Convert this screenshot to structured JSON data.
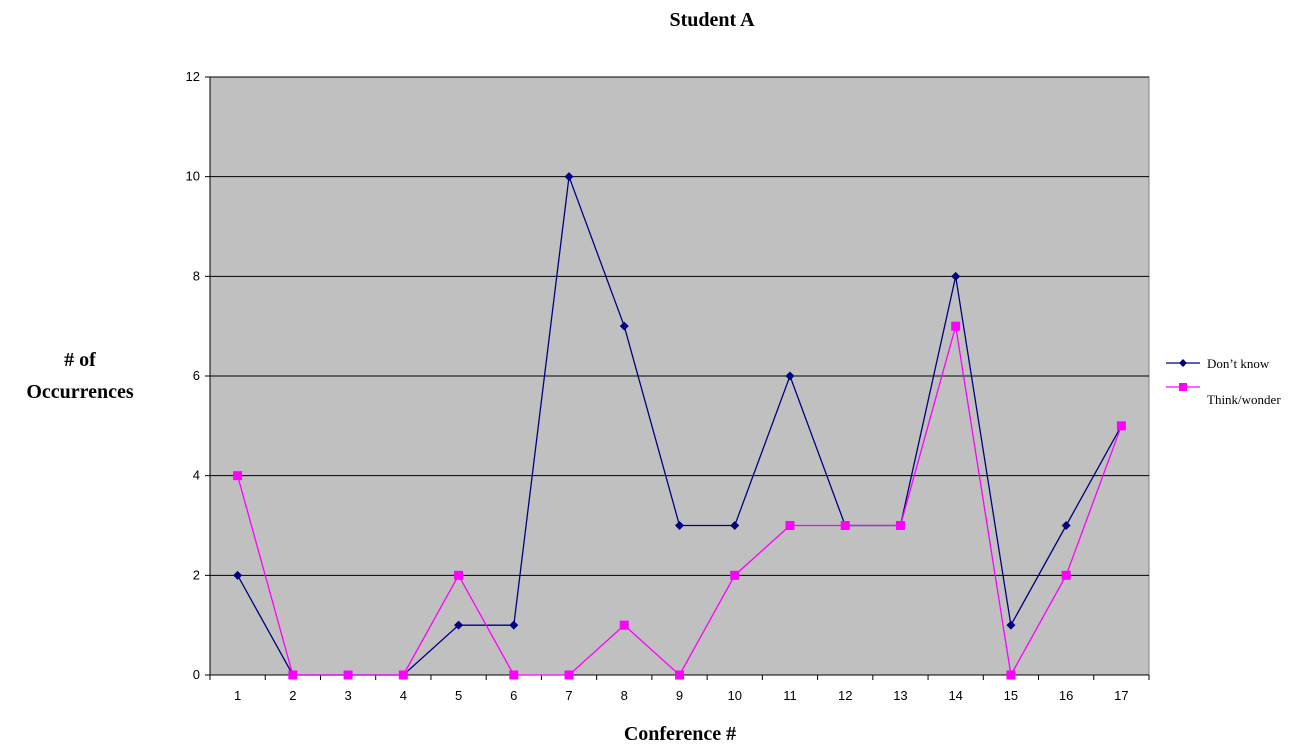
{
  "chart_data": {
    "type": "line",
    "title": "Student A",
    "xlabel": "Conference #",
    "ylabel_lines": [
      "# of",
      "Occurrences"
    ],
    "x": [
      "1",
      "2",
      "3",
      "4",
      "5",
      "6",
      "7",
      "8",
      "9",
      "10",
      "11",
      "12",
      "13",
      "14",
      "15",
      "16",
      "17"
    ],
    "ylim": [
      0,
      12
    ],
    "yticks": [
      "0",
      "2",
      "4",
      "6",
      "8",
      "10",
      "12"
    ],
    "grid": true,
    "legend_position": "right",
    "series": [
      {
        "name": "Don’t know",
        "color": "#000080",
        "marker": "diamond",
        "values": [
          2,
          0,
          0,
          0,
          1,
          1,
          10,
          7,
          3,
          3,
          6,
          3,
          3,
          8,
          1,
          3,
          5
        ]
      },
      {
        "name": "Think/wonder",
        "color": "#ff00ff",
        "marker": "square",
        "values": [
          4,
          0,
          0,
          0,
          2,
          0,
          0,
          1,
          0,
          2,
          3,
          3,
          3,
          7,
          0,
          2,
          5
        ]
      }
    ],
    "plot_background": "#c0c0c0"
  }
}
